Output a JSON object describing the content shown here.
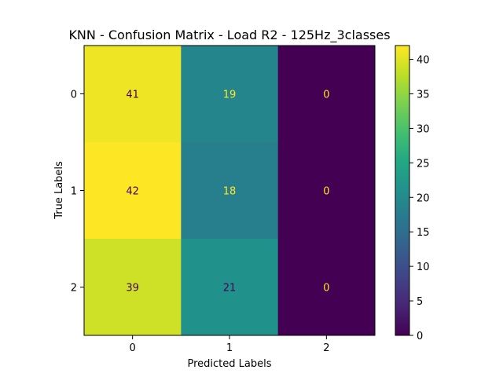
{
  "chart_data": {
    "type": "heatmap",
    "title": "KNN - Confusion Matrix - Load R2 - 125Hz_3classes",
    "xlabel": "Predicted Labels",
    "ylabel": "True Labels",
    "x_categories": [
      "0",
      "1",
      "2"
    ],
    "y_categories": [
      "0",
      "1",
      "2"
    ],
    "values": [
      [
        41,
        19,
        0
      ],
      [
        42,
        18,
        0
      ],
      [
        39,
        21,
        0
      ]
    ],
    "colorbar": {
      "min": 0,
      "max": 42,
      "ticks": [
        0,
        5,
        10,
        15,
        20,
        25,
        30,
        35,
        40
      ]
    },
    "colormap": "viridis",
    "cell_text_colors": {
      "on_dark": "#fde725",
      "on_light": "#440154"
    }
  }
}
